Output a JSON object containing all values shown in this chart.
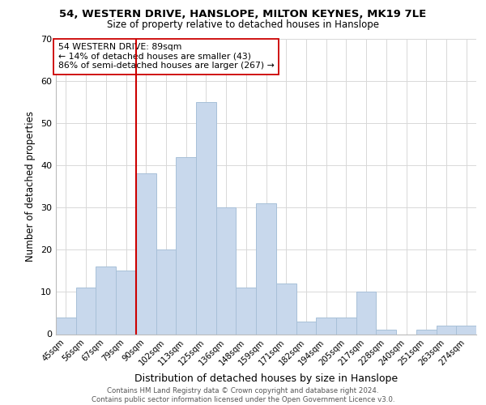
{
  "title1": "54, WESTERN DRIVE, HANSLOPE, MILTON KEYNES, MK19 7LE",
  "title2": "Size of property relative to detached houses in Hanslope",
  "xlabel": "Distribution of detached houses by size in Hanslope",
  "ylabel": "Number of detached properties",
  "bar_labels": [
    "45sqm",
    "56sqm",
    "67sqm",
    "79sqm",
    "90sqm",
    "102sqm",
    "113sqm",
    "125sqm",
    "136sqm",
    "148sqm",
    "159sqm",
    "171sqm",
    "182sqm",
    "194sqm",
    "205sqm",
    "217sqm",
    "228sqm",
    "240sqm",
    "251sqm",
    "263sqm",
    "274sqm"
  ],
  "bar_values": [
    4,
    11,
    16,
    15,
    38,
    20,
    42,
    55,
    30,
    11,
    31,
    12,
    3,
    4,
    4,
    10,
    1,
    0,
    1,
    2,
    2
  ],
  "bar_color": "#c8d8ec",
  "bar_edge_color": "#a8c0d8",
  "vline_color": "#cc0000",
  "annotation_title": "54 WESTERN DRIVE: 89sqm",
  "annotation_line1": "← 14% of detached houses are smaller (43)",
  "annotation_line2": "86% of semi-detached houses are larger (267) →",
  "footer1": "Contains HM Land Registry data © Crown copyright and database right 2024.",
  "footer2": "Contains public sector information licensed under the Open Government Licence v3.0.",
  "ylim": [
    0,
    70
  ],
  "yticks": [
    0,
    10,
    20,
    30,
    40,
    50,
    60,
    70
  ],
  "bg_color": "#ffffff",
  "grid_color": "#d8d8d8"
}
